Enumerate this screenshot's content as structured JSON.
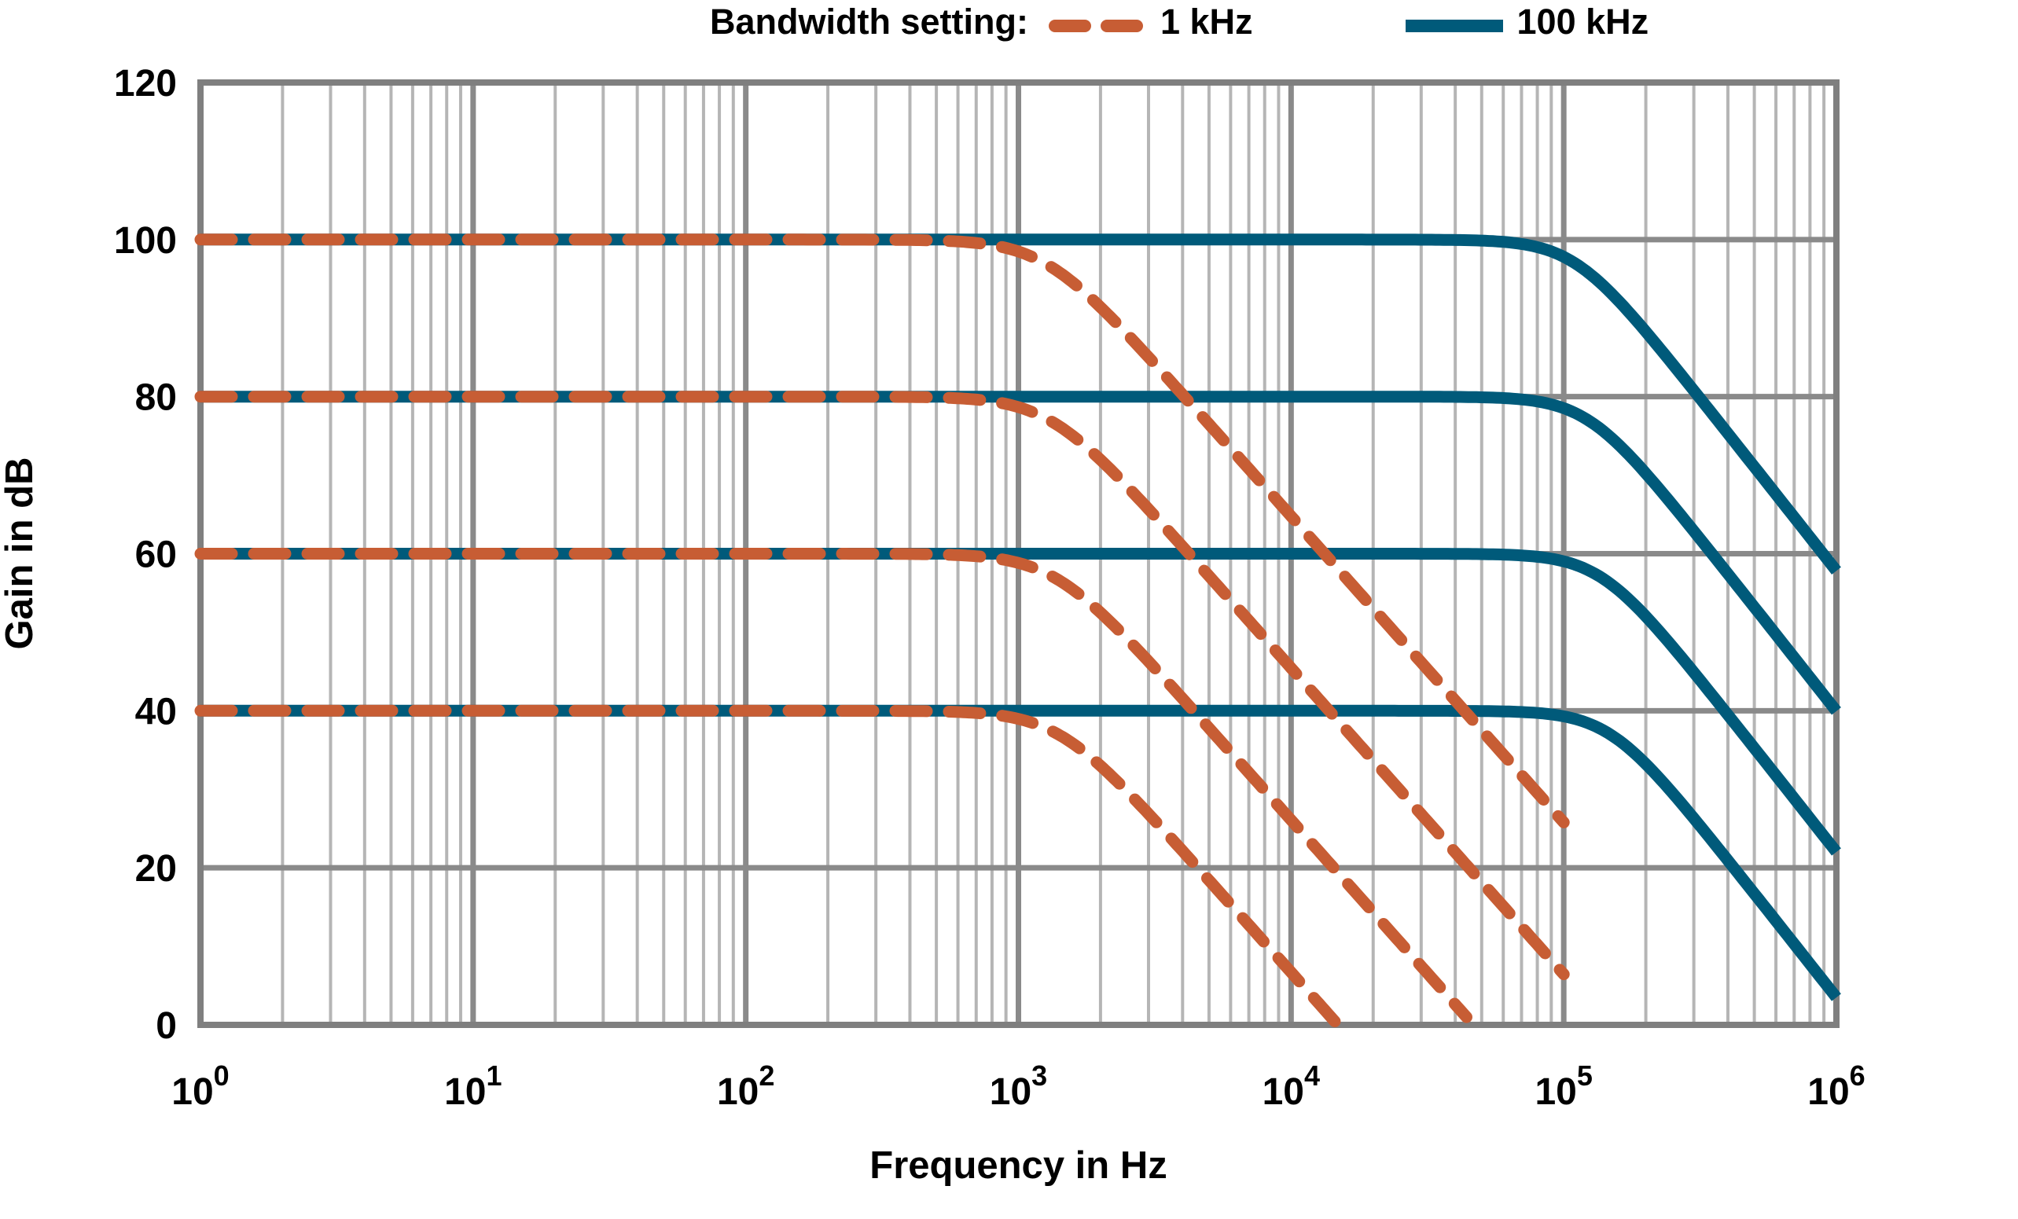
{
  "legend": {
    "title": "Bandwidth setting:",
    "items": [
      {
        "label": "1 kHz",
        "style": "dashed",
        "color": "#C75D34"
      },
      {
        "label": "100 kHz",
        "style": "solid",
        "color": "#005A7A"
      }
    ]
  },
  "chart_data": {
    "type": "line",
    "title": "",
    "xlabel": "Frequency in Hz",
    "ylabel": "Gain in dB",
    "x_scale": "log",
    "xlim": [
      1,
      1000000
    ],
    "ylim": [
      0,
      120
    ],
    "xtick_exponents": [
      0,
      1,
      2,
      3,
      4,
      5,
      6
    ],
    "xtick_base": "10",
    "yticks": [
      0,
      20,
      40,
      60,
      80,
      100,
      120
    ],
    "grid": {
      "horizontal_at_db": [
        20,
        40,
        60,
        80,
        100
      ],
      "vertical_minor_multipliers": [
        2,
        3,
        4,
        5,
        6,
        7,
        8,
        9
      ],
      "minor_color": "#B5B5B5",
      "major_color": "#8A8A8A",
      "frame_color": "#7F7F7F"
    },
    "legend_position": "top",
    "series": [
      {
        "name": "100 kHz",
        "group": "100 kHz bandwidth",
        "style": "solid",
        "color": "#005A7A",
        "gain_db": 100,
        "corner_hz": 110000,
        "rolloff_exponent": 4.4,
        "f_start": 1,
        "f_end": 1000000,
        "sample_f": [
          1,
          10,
          100,
          1000,
          10000,
          100000,
          1000000
        ],
        "sample_db": [
          100,
          100,
          100,
          100,
          100,
          97.8,
          57.9
        ]
      },
      {
        "name": "100 kHz",
        "group": "100 kHz bandwidth",
        "style": "solid",
        "color": "#005A7A",
        "gain_db": 80,
        "corner_hz": 123000,
        "rolloff_exponent": 4.4,
        "f_start": 1,
        "f_end": 1000000,
        "sample_f": [
          1,
          10,
          100,
          1000,
          10000,
          100000,
          1000000
        ],
        "sample_db": [
          80,
          80,
          80,
          80,
          80,
          78.5,
          39.9
        ]
      },
      {
        "name": "100 kHz",
        "group": "100 kHz bandwidth",
        "style": "solid",
        "color": "#005A7A",
        "gain_db": 60,
        "corner_hz": 137000,
        "rolloff_exponent": 4.4,
        "f_start": 1,
        "f_end": 1000000,
        "sample_f": [
          1,
          10,
          100,
          1000,
          10000,
          100000,
          1000000
        ],
        "sample_db": [
          60,
          60,
          60,
          60,
          60,
          59.0,
          22.0
        ]
      },
      {
        "name": "100 kHz",
        "group": "100 kHz bandwidth",
        "style": "solid",
        "color": "#005A7A",
        "gain_db": 40,
        "corner_hz": 148000,
        "rolloff_exponent": 4.4,
        "f_start": 1,
        "f_end": 1000000,
        "sample_f": [
          1,
          10,
          100,
          1000,
          10000,
          100000,
          1000000
        ],
        "sample_db": [
          40,
          40,
          40,
          40,
          40,
          39.3,
          3.5
        ]
      },
      {
        "name": "1 kHz",
        "group": "1 kHz bandwidth",
        "style": "dashed",
        "color": "#C75D34",
        "gain_db": 100,
        "corner_hz": 1250,
        "rolloff_exponent": 3.9,
        "f_start": 1,
        "f_end": 100000,
        "sample_f": [
          1,
          10,
          100,
          1000,
          10000,
          100000
        ],
        "sample_db": [
          100,
          100,
          100,
          98.9,
          64.8,
          25.8
        ]
      },
      {
        "name": "1 kHz",
        "group": "1 kHz bandwidth",
        "style": "dashed",
        "color": "#C75D34",
        "gain_db": 80,
        "corner_hz": 1300,
        "rolloff_exponent": 3.9,
        "f_start": 1,
        "f_end": 100000,
        "sample_f": [
          1,
          10,
          100,
          1000,
          10000,
          100000
        ],
        "sample_db": [
          80,
          80,
          80,
          78.9,
          45.4,
          6.4
        ]
      },
      {
        "name": "1 kHz",
        "group": "1 kHz bandwidth",
        "style": "dashed",
        "color": "#C75D34",
        "gain_db": 60,
        "corner_hz": 1350,
        "rolloff_exponent": 3.9,
        "f_start": 1,
        "f_end": 44000,
        "sample_f": [
          1,
          10,
          100,
          1000,
          10000,
          44000
        ],
        "sample_db": [
          60,
          60,
          60,
          58.8,
          25.9,
          0
        ]
      },
      {
        "name": "1 kHz",
        "group": "1 kHz bandwidth",
        "style": "dashed",
        "color": "#C75D34",
        "gain_db": 40,
        "corner_hz": 1400,
        "rolloff_exponent": 3.9,
        "f_start": 1,
        "f_end": 15000,
        "sample_f": [
          1,
          10,
          100,
          1000,
          15000
        ],
        "sample_db": [
          40,
          40,
          40,
          38.9,
          0
        ]
      }
    ]
  }
}
